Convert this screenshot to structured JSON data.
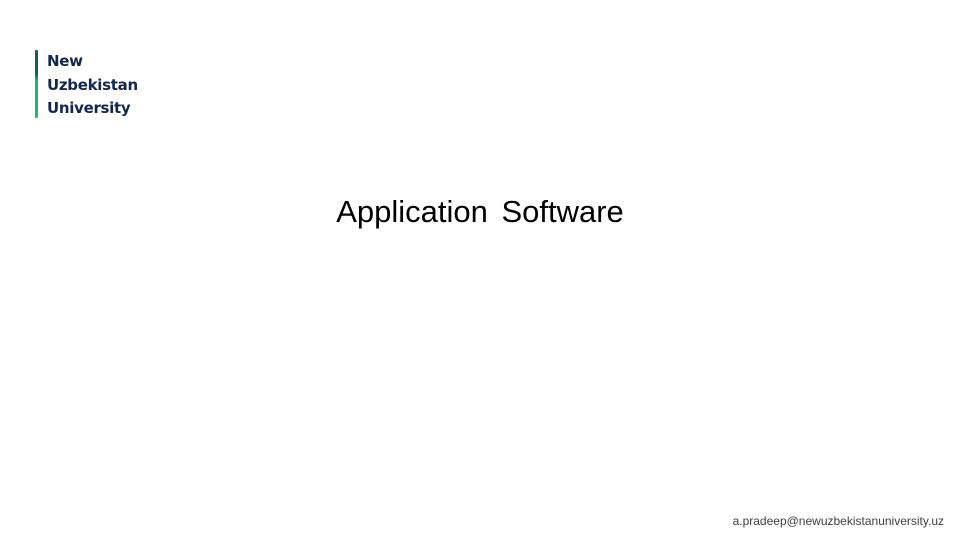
{
  "logo": {
    "lines": [
      "New",
      "Uzbekistan",
      "University"
    ],
    "bar_color_top": "#1a5e52",
    "bar_color_bottom": "#22b573",
    "text_color": "#14264a"
  },
  "slide": {
    "title": "Application Software",
    "footer_email": "a.pradeep@newuzbekistanuniversity.uz"
  }
}
